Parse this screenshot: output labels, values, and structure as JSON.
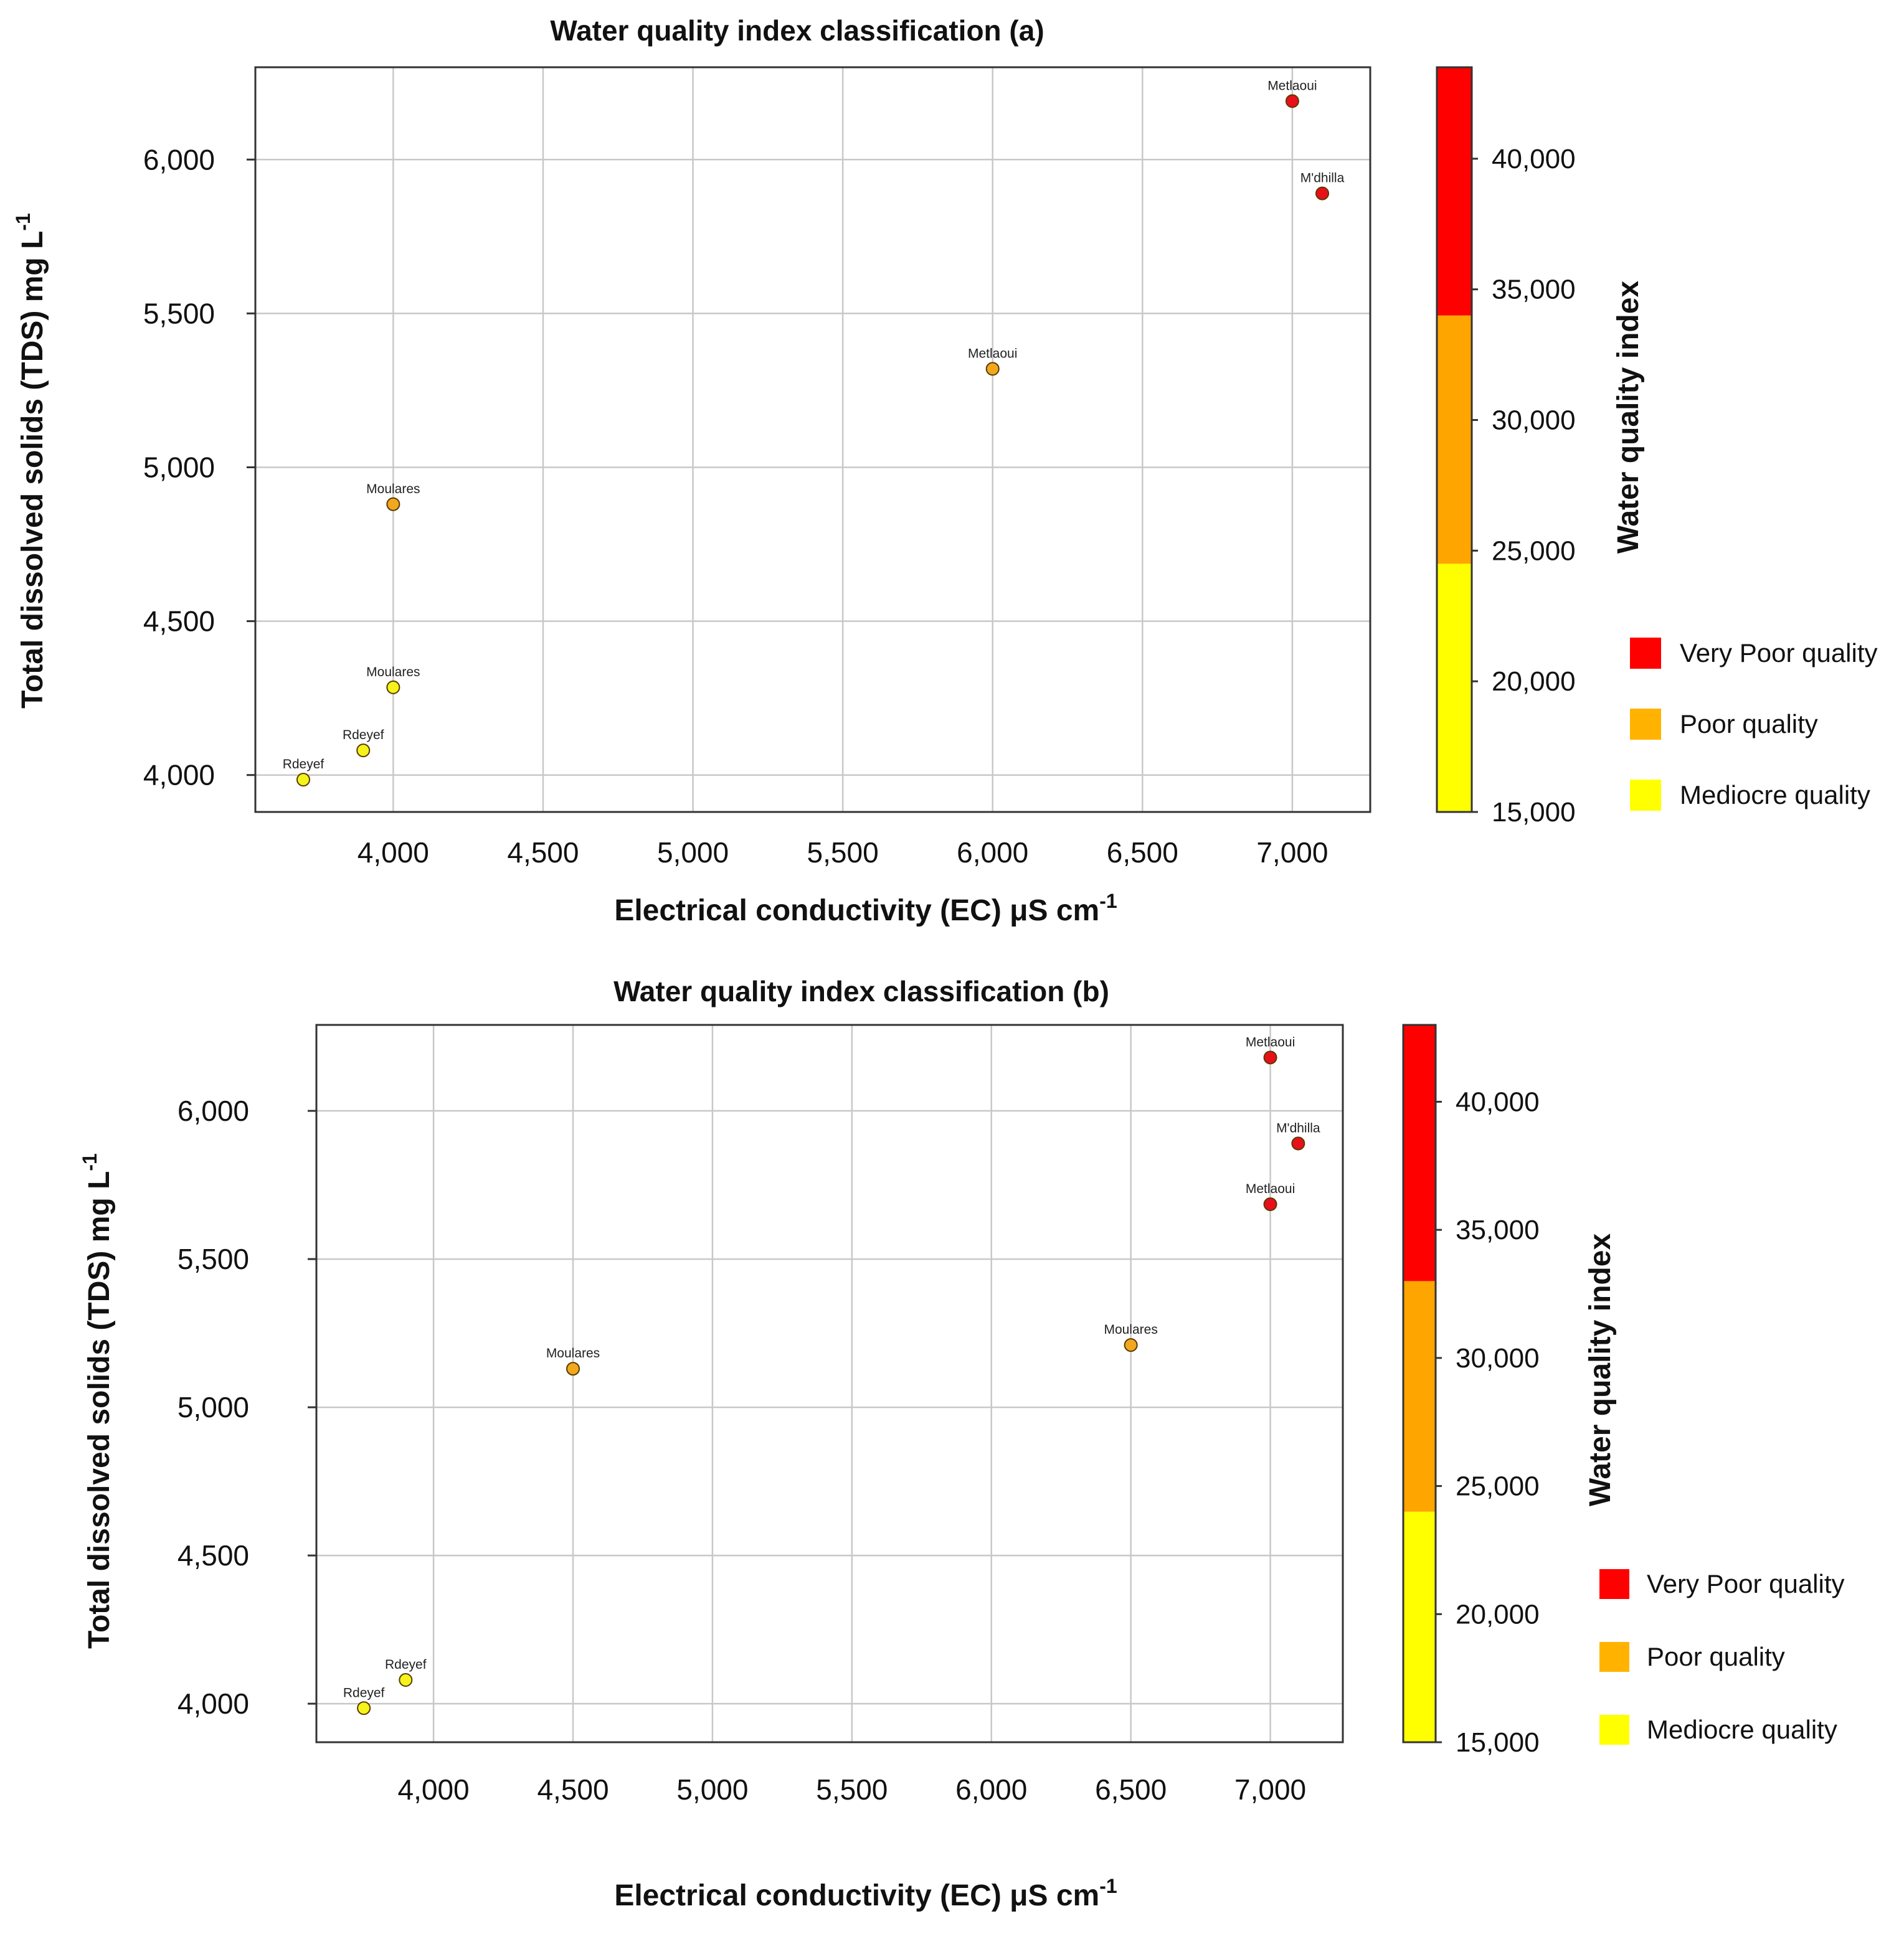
{
  "chart_data": [
    {
      "type": "scatter",
      "title": "Water quality index classification (a)",
      "xlabel": "Electrical conductivity (EC) μS cm",
      "xlabel_sup": "-1",
      "ylabel": "Total dissolved solids (TDS) mg L",
      "ylabel_sup": "-1",
      "xlim": [
        3540,
        7260
      ],
      "ylim": [
        3880,
        6300
      ],
      "xticks": [
        4000,
        4500,
        5000,
        5500,
        6000,
        6500,
        7000
      ],
      "xtick_labels": [
        "4,000",
        "4,500",
        "5,000",
        "5,500",
        "6,000",
        "6,500",
        "7,000"
      ],
      "yticks": [
        4000,
        4500,
        5000,
        5500,
        6000
      ],
      "ytick_labels": [
        "4,000",
        "4,500",
        "5,000",
        "5,500",
        "6,000"
      ],
      "grid": true,
      "points": [
        {
          "label": "Metlaoui",
          "x": 7000,
          "y": 6190,
          "class": "very_poor"
        },
        {
          "label": "M'dhilla",
          "x": 7100,
          "y": 5890,
          "class": "very_poor"
        },
        {
          "label": "Metlaoui",
          "x": 6000,
          "y": 5320,
          "class": "poor"
        },
        {
          "label": "Moulares",
          "x": 4000,
          "y": 4880,
          "class": "poor"
        },
        {
          "label": "Moulares",
          "x": 4000,
          "y": 4285,
          "class": "mediocre"
        },
        {
          "label": "Rdeyef",
          "x": 3900,
          "y": 4080,
          "class": "mediocre"
        },
        {
          "label": "Rdeyef",
          "x": 3700,
          "y": 3985,
          "class": "mediocre"
        }
      ],
      "colorbar": {
        "title": "Water quality index",
        "range": [
          15000,
          43500
        ],
        "ticks": [
          15000,
          20000,
          25000,
          30000,
          35000,
          40000
        ],
        "tick_labels": [
          "15,000",
          "20,000",
          "25,000",
          "30,000",
          "35,000",
          "40,000"
        ],
        "bands": [
          {
            "from": 15000,
            "to": 24500,
            "color": "#ffff00"
          },
          {
            "from": 24500,
            "to": 34000,
            "color": "#ffa500"
          },
          {
            "from": 34000,
            "to": 43500,
            "color": "#ff0000"
          }
        ]
      },
      "legend": [
        {
          "label": "Very Poor quality",
          "color": "#ff0000"
        },
        {
          "label": "Poor quality",
          "color": "#ffb300"
        },
        {
          "label": "Mediocre quality",
          "color": "#ffff00"
        }
      ]
    },
    {
      "type": "scatter",
      "title": "Water quality index classification (b)",
      "xlabel": "Electrical conductivity (EC) μS cm",
      "xlabel_sup": "-1",
      "ylabel": "Total dissolved solids (TDS) mg L",
      "ylabel_sup": "-1",
      "xlim": [
        3580,
        7260
      ],
      "ylim": [
        3870,
        6290
      ],
      "xticks": [
        4000,
        4500,
        5000,
        5500,
        6000,
        6500,
        7000
      ],
      "xtick_labels": [
        "4,000",
        "4,500",
        "5,000",
        "5,500",
        "6,000",
        "6,500",
        "7,000"
      ],
      "yticks": [
        4000,
        4500,
        5000,
        5500,
        6000
      ],
      "ytick_labels": [
        "4,000",
        "4,500",
        "5,000",
        "5,500",
        "6,000"
      ],
      "grid": true,
      "points": [
        {
          "label": "Metlaoui",
          "x": 7000,
          "y": 6180,
          "class": "very_poor"
        },
        {
          "label": "M'dhilla",
          "x": 7100,
          "y": 5890,
          "class": "very_poor"
        },
        {
          "label": "Metlaoui",
          "x": 7000,
          "y": 5685,
          "class": "very_poor"
        },
        {
          "label": "Moulares",
          "x": 6500,
          "y": 5210,
          "class": "poor"
        },
        {
          "label": "Moulares",
          "x": 4500,
          "y": 5130,
          "class": "poor"
        },
        {
          "label": "Rdeyef",
          "x": 3900,
          "y": 4080,
          "class": "mediocre"
        },
        {
          "label": "Rdeyef",
          "x": 3750,
          "y": 3985,
          "class": "mediocre"
        }
      ],
      "colorbar": {
        "title": "Water quality index",
        "range": [
          15000,
          43000
        ],
        "ticks": [
          15000,
          20000,
          25000,
          30000,
          35000,
          40000
        ],
        "tick_labels": [
          "15,000",
          "20,000",
          "25,000",
          "30,000",
          "35,000",
          "40,000"
        ],
        "bands": [
          {
            "from": 15000,
            "to": 24000,
            "color": "#ffff00"
          },
          {
            "from": 24000,
            "to": 33000,
            "color": "#ffa500"
          },
          {
            "from": 33000,
            "to": 43000,
            "color": "#ff0000"
          }
        ]
      },
      "legend": [
        {
          "label": "Very Poor quality",
          "color": "#ff0000"
        },
        {
          "label": "Poor quality",
          "color": "#ffb300"
        },
        {
          "label": "Mediocre quality",
          "color": "#ffff00"
        }
      ]
    }
  ],
  "point_colors": {
    "very_poor": "#e8101a",
    "poor": "#f2a81e",
    "mediocre": "#f4f41c"
  }
}
